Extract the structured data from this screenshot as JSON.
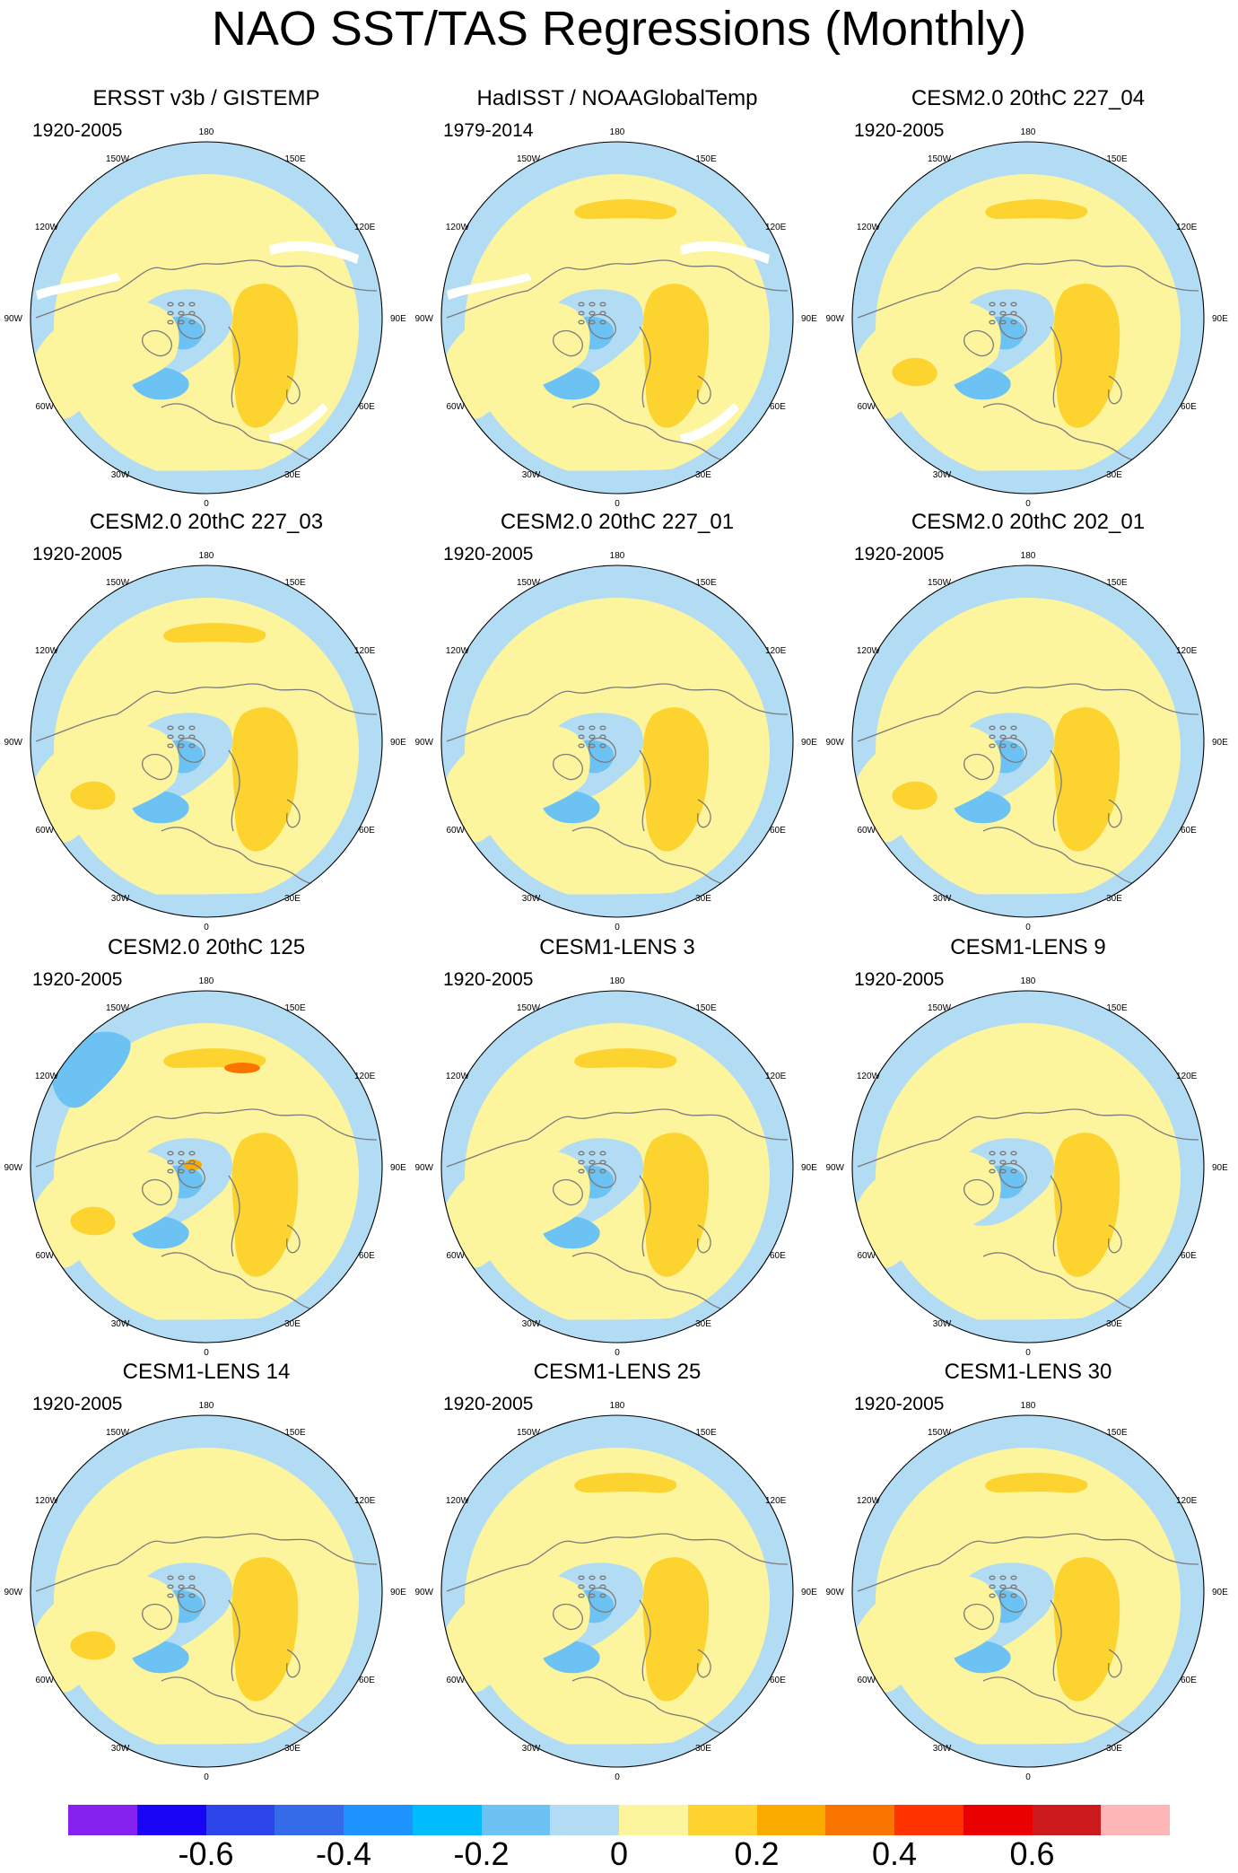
{
  "title": "NAO SST/TAS Regressions (Monthly)",
  "longitude_labels": [
    "180",
    "150W",
    "150E",
    "120W",
    "120E",
    "90W",
    "90E",
    "60W",
    "60E",
    "30W",
    "30E",
    "0"
  ],
  "palette": {
    "colors": [
      "#8522f0",
      "#1a04f5",
      "#2e45ec",
      "#336be8",
      "#1d93fd",
      "#00bcfc",
      "#6cc2f3",
      "#b2dcf4",
      "#fdf59d",
      "#fdd42f",
      "#fbaa00",
      "#f97500",
      "#fe3300",
      "#eb0000",
      "#cd1a1d",
      "#feb6b6"
    ],
    "labels": [
      {
        "text": "-0.6",
        "boundary": 2
      },
      {
        "text": "-0.4",
        "boundary": 4
      },
      {
        "text": "-0.2",
        "boundary": 6
      },
      {
        "text": "0",
        "boundary": 8
      },
      {
        "text": "0.2",
        "boundary": 10
      },
      {
        "text": "0.4",
        "boundary": 12
      },
      {
        "text": "0.6",
        "boundary": 14
      }
    ]
  },
  "panels": [
    {
      "title": "ERSST v3b / GISTEMP",
      "years": "1920-2005",
      "missing": true
    },
    {
      "title": "HadISST / NOAAGlobalTemp",
      "years": "1979-2014",
      "missing": true
    },
    {
      "title": "CESM2.0 20thC 227_04",
      "years": "1920-2005",
      "missing": false
    },
    {
      "title": "CESM2.0 20thC 227_03",
      "years": "1920-2005",
      "missing": false
    },
    {
      "title": "CESM2.0 20thC 227_01",
      "years": "1920-2005",
      "missing": false
    },
    {
      "title": "CESM2.0 20thC 202_01",
      "years": "1920-2005",
      "missing": false
    },
    {
      "title": "CESM2.0 20thC 125",
      "years": "1920-2005",
      "missing": false
    },
    {
      "title": "CESM1-LENS 3",
      "years": "1920-2005",
      "missing": false
    },
    {
      "title": "CESM1-LENS 9",
      "years": "1920-2005",
      "missing": false
    },
    {
      "title": "CESM1-LENS 14",
      "years": "1920-2005",
      "missing": false
    },
    {
      "title": "CESM1-LENS 25",
      "years": "1920-2005",
      "missing": false
    },
    {
      "title": "CESM1-LENS 30",
      "years": "1920-2005",
      "missing": false
    }
  ]
}
